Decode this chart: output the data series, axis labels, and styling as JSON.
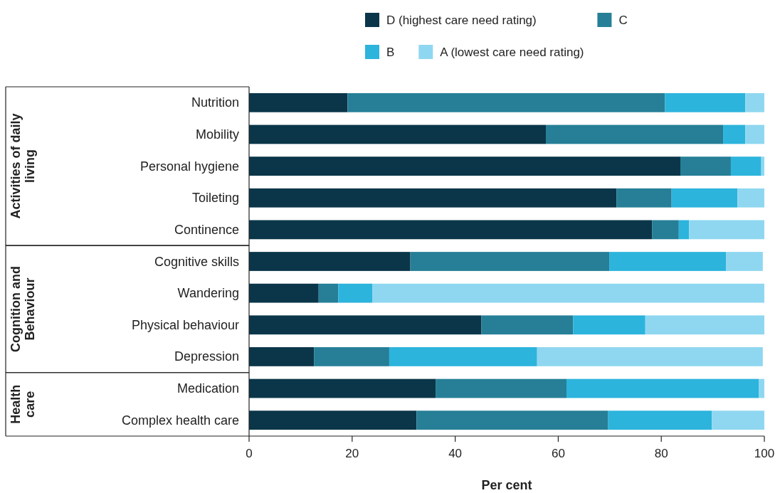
{
  "chart_data": {
    "type": "bar",
    "orientation": "horizontal",
    "stacked": true,
    "categories": [
      "Nutrition",
      "Mobility",
      "Personal hygiene",
      "Toileting",
      "Continence",
      "Cognitive skills",
      "Wandering",
      "Physical behaviour",
      "Depression",
      "Medication",
      "Complex health care"
    ],
    "series": [
      {
        "name": "D (highest care need rating)",
        "color": "#0b3649",
        "values": [
          19.1,
          57.6,
          83.7,
          71.3,
          78.2,
          31.3,
          13.5,
          45.1,
          12.6,
          36.2,
          32.5
        ]
      },
      {
        "name": "C",
        "color": "#267f97",
        "values": [
          61.6,
          34.4,
          9.8,
          10.7,
          5.2,
          38.6,
          3.8,
          17.8,
          14.6,
          25.4,
          37.2
        ]
      },
      {
        "name": "B",
        "color": "#2cb4dc",
        "values": [
          15.6,
          4.3,
          5.9,
          12.8,
          2.0,
          22.7,
          6.6,
          14.0,
          28.7,
          37.3,
          20.1
        ]
      },
      {
        "name": "A (lowest care need rating)",
        "color": "#8fd7f0",
        "values": [
          3.7,
          3.7,
          0.6,
          5.2,
          14.6,
          7.1,
          76.1,
          23.1,
          43.8,
          1.1,
          10.2
        ]
      }
    ],
    "xlim": [
      0,
      100
    ],
    "xticks": [
      0,
      20,
      40,
      60,
      80,
      100
    ],
    "xlabel": "Per cent",
    "annotations": [
      "Activities of daily living",
      "Cognition and Behaviour",
      "Health care"
    ],
    "legend": "top"
  }
}
